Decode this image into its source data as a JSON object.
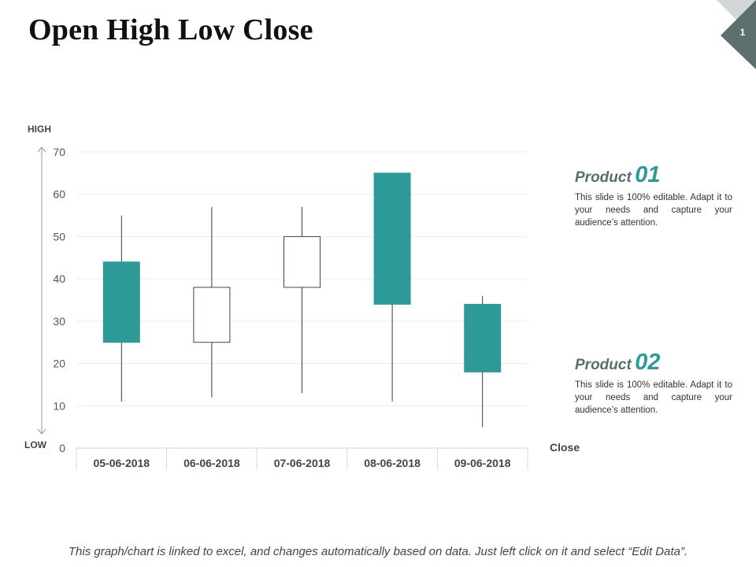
{
  "slide": {
    "title": "Open High Low Close",
    "page_number": "1",
    "footer": "This graph/chart is linked to excel, and changes automatically based on data. Just left click on it and select “Edit Data”."
  },
  "colors": {
    "accent": "#2e9a97",
    "corner_dark": "#5d6f6c",
    "corner_light": "#d3d6d6",
    "product_label": "#5a6e6b"
  },
  "products": [
    {
      "label": "Product",
      "number": "01",
      "description": "This slide is 100% editable. Adapt it to your needs and capture your audience’s attention."
    },
    {
      "label": "Product",
      "number": "02",
      "description": "This slide is 100% editable. Adapt it to your needs and capture your audience’s attention."
    }
  ],
  "chart_data": {
    "type": "candlestick",
    "categories": [
      "05-06-2018",
      "06-06-2018",
      "07-06-2018",
      "08-06-2018",
      "09-06-2018"
    ],
    "series": [
      {
        "name": "Open",
        "values": [
          25,
          25,
          38,
          34,
          18
        ]
      },
      {
        "name": "High",
        "values": [
          55,
          57,
          57,
          65,
          36
        ]
      },
      {
        "name": "Low",
        "values": [
          11,
          12,
          13,
          11,
          5
        ]
      },
      {
        "name": "Close",
        "values": [
          44,
          38,
          50,
          65,
          34
        ]
      }
    ],
    "fill_style": [
      "filled",
      "hollow",
      "hollow",
      "filled",
      "filled"
    ],
    "title": "",
    "xlabel": "Close",
    "ylabel_top": "HIGH",
    "ylabel_bottom": "LOW",
    "ylim": [
      0,
      70
    ],
    "yticks": [
      0,
      10,
      20,
      30,
      40,
      50,
      60,
      70
    ],
    "grid": true,
    "legend": "none"
  }
}
